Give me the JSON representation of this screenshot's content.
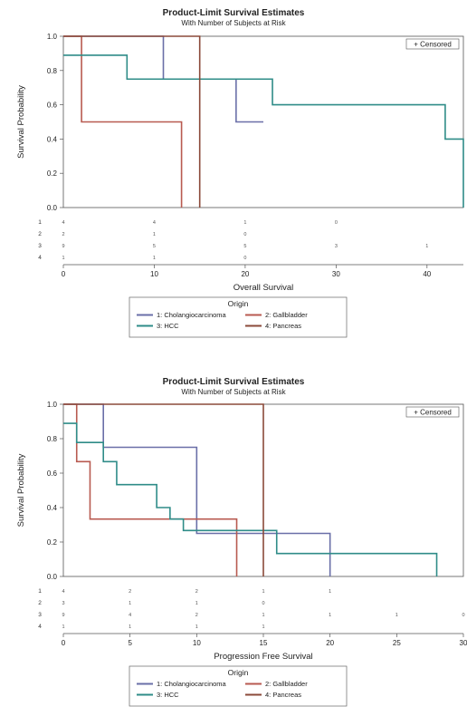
{
  "chart_data": [
    {
      "type": "line",
      "step": true,
      "title": "Product-Limit Survival Estimates",
      "subtitle": "With Number of Subjects at Risk",
      "xlabel": "Overall Survival",
      "ylabel": "Survival Probability",
      "xlim": [
        0,
        44
      ],
      "ylim": [
        0,
        1.0
      ],
      "xticks": [
        0,
        10,
        20,
        30,
        40
      ],
      "yticks": [
        "0.0",
        "0.2",
        "0.4",
        "0.6",
        "0.8",
        "1.0"
      ],
      "censored_label": "+ Censored",
      "series": [
        {
          "name": "1: Cholangiocarcinoma",
          "color": "#6a6fa8",
          "x": [
            0,
            11,
            19,
            22
          ],
          "y": [
            1.0,
            0.75,
            0.5,
            0.5
          ]
        },
        {
          "name": "2: Gallbladder",
          "color": "#b85a50",
          "x": [
            0,
            2,
            13,
            13
          ],
          "y": [
            1.0,
            0.5,
            0.0,
            0.0
          ]
        },
        {
          "name": "3: HCC",
          "color": "#2f8c88",
          "x": [
            0,
            7,
            23,
            42,
            44,
            44
          ],
          "y": [
            0.889,
            0.75,
            0.6,
            0.4,
            0.0,
            0.0
          ]
        },
        {
          "name": "4: Pancreas",
          "color": "#8b4a3a",
          "x": [
            0,
            15,
            15
          ],
          "y": [
            1.0,
            0.0,
            0.0
          ]
        }
      ],
      "risk_labels": [
        "1",
        "2",
        "3",
        "4"
      ],
      "risk_x": [
        0,
        10,
        20,
        30,
        40
      ],
      "risk_table": [
        [
          "4",
          "4",
          "1",
          "0",
          ""
        ],
        [
          "2",
          "1",
          "0",
          "",
          ""
        ],
        [
          "9",
          "5",
          "5",
          "3",
          "1"
        ],
        [
          "1",
          "1",
          "0",
          "",
          ""
        ]
      ],
      "legend_title": "Origin"
    },
    {
      "type": "line",
      "step": true,
      "title": "Product-Limit Survival Estimates",
      "subtitle": "With Number of Subjects at Risk",
      "xlabel": "Progression Free Survival",
      "ylabel": "Survival Probability",
      "xlim": [
        0,
        30
      ],
      "ylim": [
        0,
        1.0
      ],
      "xticks": [
        0,
        5,
        10,
        15,
        20,
        25,
        30
      ],
      "yticks": [
        "0.0",
        "0.2",
        "0.4",
        "0.6",
        "0.8",
        "1.0"
      ],
      "censored_label": "+ Censored",
      "series": [
        {
          "name": "1: Cholangiocarcinoma",
          "color": "#6a6fa8",
          "x": [
            0,
            3,
            10,
            20,
            20
          ],
          "y": [
            1.0,
            0.75,
            0.25,
            0.0,
            0.0
          ]
        },
        {
          "name": "2: Gallbladder",
          "color": "#b85a50",
          "x": [
            0,
            1,
            2,
            13,
            13
          ],
          "y": [
            1.0,
            0.667,
            0.333,
            0.0,
            0.0
          ]
        },
        {
          "name": "3: HCC",
          "color": "#2f8c88",
          "x": [
            0,
            1,
            3,
            4,
            7,
            8,
            9,
            16,
            28,
            28
          ],
          "y": [
            0.889,
            0.778,
            0.667,
            0.533,
            0.4,
            0.333,
            0.267,
            0.133,
            0.0,
            0.0
          ]
        },
        {
          "name": "4: Pancreas",
          "color": "#8b4a3a",
          "x": [
            0,
            15,
            15
          ],
          "y": [
            1.0,
            0.0,
            0.0
          ]
        }
      ],
      "risk_labels": [
        "1",
        "2",
        "3",
        "4"
      ],
      "risk_x": [
        0,
        5,
        10,
        15,
        20,
        25,
        30
      ],
      "risk_table": [
        [
          "4",
          "2",
          "2",
          "1",
          "1",
          "",
          ""
        ],
        [
          "3",
          "1",
          "1",
          "0",
          "",
          "",
          ""
        ],
        [
          "9",
          "4",
          "2",
          "1",
          "1",
          "1",
          "0"
        ],
        [
          "1",
          "1",
          "1",
          "1",
          "",
          "",
          ""
        ]
      ],
      "legend_title": "Origin"
    }
  ]
}
